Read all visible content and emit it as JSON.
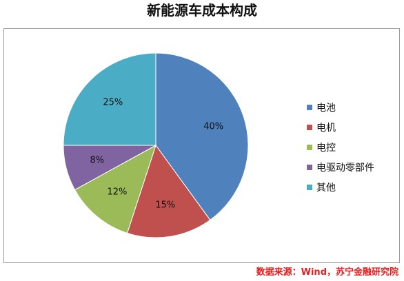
{
  "chart_data": {
    "type": "pie",
    "title": "新能源车成本构成",
    "categories": [
      "电池",
      "电机",
      "电控",
      "电驱动零部件",
      "其他"
    ],
    "values": [
      40,
      15,
      12,
      8,
      25
    ],
    "data_labels": [
      "40%",
      "15%",
      "12%",
      "8%",
      "25%"
    ],
    "colors": [
      "#4f81bd",
      "#c0504d",
      "#9bbb59",
      "#8064a2",
      "#4bacc6"
    ],
    "legend": "right"
  },
  "source": "数据来源：Wind，苏宁金融研究院"
}
